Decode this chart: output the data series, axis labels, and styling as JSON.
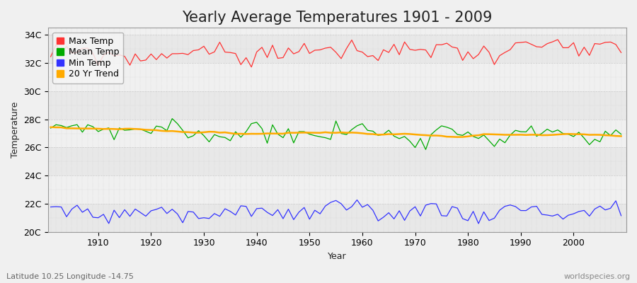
{
  "title": "Yearly Average Temperatures 1901 - 2009",
  "xlabel": "Year",
  "ylabel": "Temperature",
  "subtitle_lat": "Latitude 10.25 Longitude -14.75",
  "watermark": "worldspecies.org",
  "year_start": 1901,
  "year_end": 2009,
  "ylim": [
    20,
    34.5
  ],
  "yticks": [
    20,
    22,
    24,
    26,
    28,
    30,
    32,
    34
  ],
  "ytick_labels": [
    "20C",
    "22C",
    "24C",
    "26C",
    "28C",
    "30C",
    "32C",
    "34C"
  ],
  "background_color": "#f0f0f0",
  "plot_bg_color": "#f0f0f0",
  "band_colors": [
    "#e8e8e8",
    "#f0f0f0"
  ],
  "grid_color": "#cccccc",
  "max_temp_color": "#ff3333",
  "mean_temp_color": "#00aa00",
  "min_temp_color": "#3333ff",
  "trend_color": "#ffaa00",
  "legend_labels": [
    "Max Temp",
    "Mean Temp",
    "Min Temp",
    "20 Yr Trend"
  ],
  "title_fontsize": 15,
  "axis_label_fontsize": 9,
  "tick_label_fontsize": 9,
  "legend_fontsize": 9
}
